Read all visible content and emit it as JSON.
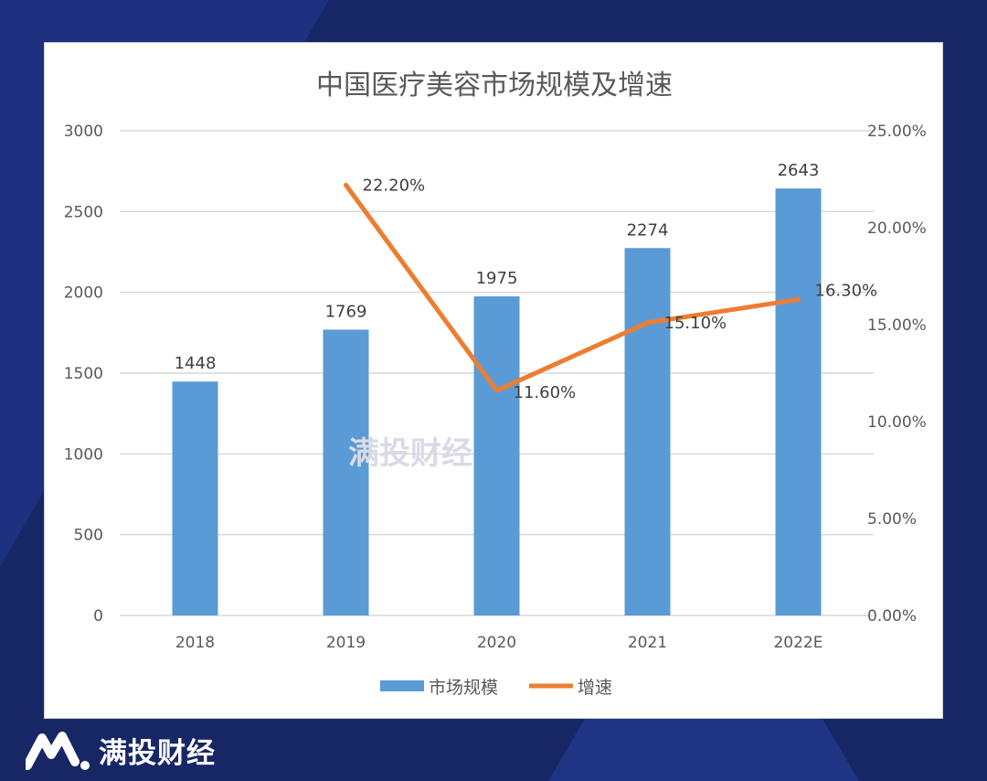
{
  "brand": {
    "name": "满投财经",
    "watermark": "满投财经"
  },
  "colors": {
    "background": "#172766",
    "bar": "#5b9bd5",
    "line": "#ed7d31"
  },
  "chart_data": {
    "type": "bar+line",
    "title": "中国医疗美容市场规模及增速",
    "categories": [
      "2018",
      "2019",
      "2020",
      "2021",
      "2022E"
    ],
    "series": [
      {
        "name": "市场规模",
        "type": "bar",
        "axis": "left",
        "values": [
          1448,
          1769,
          1975,
          2274,
          2643
        ],
        "labels": [
          "1448",
          "1769",
          "1975",
          "2274",
          "2643"
        ]
      },
      {
        "name": "增速",
        "type": "line",
        "axis": "right",
        "values": [
          null,
          22.2,
          11.6,
          15.1,
          16.3
        ],
        "labels": [
          "",
          "22.20%",
          "11.60%",
          "15.10%",
          "16.30%"
        ]
      }
    ],
    "y_left": {
      "lim": [
        0,
        3000
      ],
      "ticks": [
        "0",
        "500",
        "1000",
        "1500",
        "2000",
        "2500",
        "3000"
      ]
    },
    "y_right": {
      "lim": [
        0,
        25
      ],
      "ticks": [
        "0.00%",
        "5.00%",
        "10.00%",
        "15.00%",
        "20.00%",
        "25.00%"
      ]
    },
    "grid": true,
    "legend": "bottom"
  }
}
